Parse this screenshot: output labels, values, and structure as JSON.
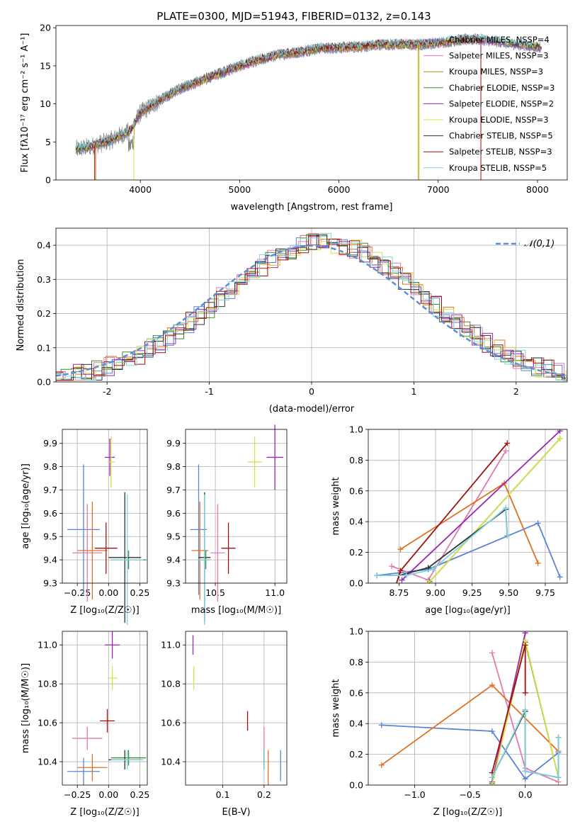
{
  "chart_data": [
    {
      "type": "line",
      "title": "PLATE=0300, MJD=51943, FIBERID=0132, z=0.143",
      "xlabel": "wavelength [Angstrom, rest frame]",
      "ylabel": "Flux [fλ10⁻¹⁷ erg cm⁻² s⁻¹ A⁻¹]",
      "xlim": [
        3150,
        8300
      ],
      "ylim": [
        0,
        20.3
      ],
      "xticks": [
        4000,
        5000,
        6000,
        7000,
        8000
      ],
      "yticks": [
        0,
        5,
        10,
        15,
        20
      ],
      "grid": false,
      "legend": "top-right",
      "legend_entries": [
        {
          "label": "Chabrier MILES, NSSP=4",
          "color": "#5b84d6"
        },
        {
          "label": "Salpeter MILES, NSSP=3",
          "color": "#e07bb0"
        },
        {
          "label": "Kroupa MILES, NSSP=3",
          "color": "#b8860b"
        },
        {
          "label": "Chabrier ELODIE, NSSP=3",
          "color": "#3a8a3a"
        },
        {
          "label": "Salpeter ELODIE, NSSP=2",
          "color": "#9b27b0"
        },
        {
          "label": "Kroupa ELODIE, NSSP=3",
          "color": "#d8e04a"
        },
        {
          "label": "Chabrier STELIB, NSSP=5",
          "color": "#333333"
        },
        {
          "label": "Salpeter STELIB, NSSP=3",
          "color": "#a01010"
        },
        {
          "label": "Kroupa STELIB, NSSP=5",
          "color": "#7fd3e0"
        }
      ],
      "continuum_x": [
        3350,
        3500,
        3700,
        3900,
        4000,
        4200,
        4400,
        4600,
        4800,
        5000,
        5200,
        5400,
        5600,
        5800,
        6000,
        6200,
        6400,
        6600,
        6800,
        7000,
        7200,
        7400,
        7600,
        7800,
        8000
      ],
      "continuum_y": [
        4,
        4.4,
        5.2,
        6.5,
        8.8,
        10.5,
        12,
        13,
        14,
        15,
        15.8,
        16.5,
        16.8,
        17.3,
        17.4,
        17.5,
        17.8,
        17.8,
        17.8,
        18,
        18.4,
        18.5,
        18.2,
        17.8,
        17.5
      ]
    },
    {
      "type": "bar",
      "xlabel": "(data-model)/error",
      "ylabel": "Normed distribution",
      "xlim": [
        -2.5,
        2.5
      ],
      "ylim": [
        0,
        0.45
      ],
      "xticks": [
        -2,
        -1,
        0,
        1,
        2
      ],
      "yticks": [
        0.0,
        0.1,
        0.2,
        0.3,
        0.4
      ],
      "grid": true,
      "legend": "top-right",
      "legend_entries": [
        {
          "label": "𝒩(0,1)",
          "color": "#5b8fd6"
        }
      ],
      "bin_width": 0.1,
      "series_colors": [
        "#5b84d6",
        "#e07bb0",
        "#e07020",
        "#3a8a3a",
        "#9b27b0",
        "#d8e04a",
        "#333333",
        "#a01010",
        "#7fd3e0"
      ]
    },
    {
      "type": "scatter",
      "xlabel": "Z [log₁₀(Z/Z☉)]",
      "ylabel": "age  [log₁₀(age/yr)]",
      "xlim": [
        -0.37,
        0.31
      ],
      "ylim": [
        9.3,
        9.96
      ],
      "xticks": [
        -0.25,
        0,
        0.25
      ],
      "xticklabels": [
        "−0.25",
        "0.00",
        "0.25"
      ],
      "yticks": [
        9.3,
        9.4,
        9.5,
        9.6,
        9.7,
        9.8,
        9.9
      ],
      "grid": true,
      "points": [
        {
          "x": -0.2,
          "y": 9.53,
          "xerr": 0.13,
          "yerr": 0.28,
          "color": "#5b84d6"
        },
        {
          "x": -0.17,
          "y": 9.43,
          "xerr": 0.12,
          "yerr": 0.21,
          "color": "#e07bb0"
        },
        {
          "x": -0.13,
          "y": 9.44,
          "xerr": 0.12,
          "yerr": 0.21,
          "color": "#e07020"
        },
        {
          "x": 0.16,
          "y": 9.4,
          "xerr": 0.14,
          "yerr": 0.04,
          "color": "#3a8a3a"
        },
        {
          "x": 0.01,
          "y": 9.84,
          "xerr": 0.04,
          "yerr": 0.08,
          "color": "#9b27b0"
        },
        {
          "x": 0.02,
          "y": 9.82,
          "xerr": 0.03,
          "yerr": 0.11,
          "color": "#d8e04a"
        },
        {
          "x": 0.13,
          "y": 9.41,
          "xerr": 0.13,
          "yerr": 0.28,
          "color": "#333333"
        },
        {
          "x": -0.02,
          "y": 9.45,
          "xerr": 0.09,
          "yerr": 0.11,
          "color": "#a01010"
        },
        {
          "x": 0.15,
          "y": 9.4,
          "xerr": 0.13,
          "yerr": 0.28,
          "color": "#7fd3e0"
        }
      ]
    },
    {
      "type": "scatter",
      "xlabel": "mass [log₁₀(M/M☉)]",
      "ylabel": "",
      "xlim": [
        10.25,
        11.1
      ],
      "ylim": [
        9.3,
        9.96
      ],
      "xticks": [
        10.5,
        11.0
      ],
      "xticklabels": [
        "10.5",
        "11.0"
      ],
      "yticks": [
        9.3,
        9.4,
        9.5,
        9.6,
        9.7,
        9.8,
        9.9
      ],
      "grid": true,
      "points": [
        {
          "x": 10.36,
          "y": 9.53,
          "xerr": 0.07,
          "yerr": 0.28,
          "color": "#5b84d6"
        },
        {
          "x": 10.52,
          "y": 9.43,
          "xerr": 0.06,
          "yerr": 0.21,
          "color": "#e07bb0"
        },
        {
          "x": 10.37,
          "y": 9.44,
          "xerr": 0.07,
          "yerr": 0.21,
          "color": "#e07020"
        },
        {
          "x": 10.42,
          "y": 9.4,
          "xerr": 0.04,
          "yerr": 0.04,
          "color": "#3a8a3a"
        },
        {
          "x": 11.0,
          "y": 9.84,
          "xerr": 0.07,
          "yerr": 0.14,
          "color": "#9b27b0"
        },
        {
          "x": 10.83,
          "y": 9.82,
          "xerr": 0.06,
          "yerr": 0.11,
          "color": "#d8e04a"
        },
        {
          "x": 10.41,
          "y": 9.41,
          "xerr": 0.05,
          "yerr": 0.28,
          "color": "#333333"
        },
        {
          "x": 10.61,
          "y": 9.45,
          "xerr": 0.06,
          "yerr": 0.11,
          "color": "#a01010"
        },
        {
          "x": 10.41,
          "y": 9.4,
          "xerr": 0.05,
          "yerr": 0.28,
          "color": "#7fd3e0"
        }
      ]
    },
    {
      "type": "line",
      "xlabel": "age  [log₁₀(age/yr)]",
      "ylabel": "mass weight",
      "xlim": [
        8.54,
        9.9
      ],
      "ylim": [
        0,
        1
      ],
      "xticks": [
        8.75,
        9.0,
        9.25,
        9.5,
        9.75
      ],
      "xticklabels": [
        "8.75",
        "9.00",
        "9.25",
        "9.50",
        "9.75"
      ],
      "yticks": [
        0,
        0.2,
        0.4,
        0.6,
        0.8,
        1.0
      ],
      "yticklabels": [
        "0.0",
        "0.2",
        "0.4",
        "0.6",
        "0.8",
        "1.0"
      ],
      "grid": true,
      "series": [
        {
          "color": "#5b84d6",
          "x": [
            8.6,
            8.95,
            9.7,
            9.85
          ],
          "y": [
            0.05,
            0.09,
            0.39,
            0.04
          ]
        },
        {
          "color": "#e07bb0",
          "x": [
            8.7,
            8.95,
            9.48
          ],
          "y": [
            0.11,
            0.02,
            0.86
          ]
        },
        {
          "color": "#e07020",
          "x": [
            8.76,
            9.47,
            9.7
          ],
          "y": [
            0.22,
            0.65,
            0.13
          ]
        },
        {
          "color": "#3a8a3a",
          "x": [
            8.96,
            9.85
          ],
          "y": [
            0.01,
            0.94
          ]
        },
        {
          "color": "#9b27b0",
          "x": [
            8.77,
            9.85
          ],
          "y": [
            0.02,
            0.99
          ]
        },
        {
          "color": "#d8e04a",
          "x": [
            8.95,
            9.85
          ],
          "y": [
            0.0,
            0.94
          ]
        },
        {
          "color": "#333333",
          "x": [
            8.6,
            8.75,
            8.95,
            9.48,
            9.49
          ],
          "y": [
            0.05,
            0.05,
            0.1,
            0.48,
            0.31
          ]
        },
        {
          "color": "#a01010",
          "x": [
            8.7,
            8.76,
            9.49
          ],
          "y": [
            -0.1,
            0.08,
            0.91
          ]
        },
        {
          "color": "#7fd3e0",
          "x": [
            8.6,
            8.8,
            8.98,
            9.48,
            9.49
          ],
          "y": [
            0.05,
            0.05,
            0.09,
            0.49,
            0.31
          ]
        }
      ]
    },
    {
      "type": "scatter",
      "xlabel": "Z [log₁₀(Z/Z☉)]",
      "ylabel": "mass [log₁₀(M/M☉)]",
      "xlim": [
        -0.37,
        0.31
      ],
      "ylim": [
        10.28,
        11.07
      ],
      "xticks": [
        -0.25,
        0,
        0.25
      ],
      "xticklabels": [
        "−0.25",
        "0.00",
        "0.25"
      ],
      "yticks": [
        10.4,
        10.6,
        10.8,
        11.0
      ],
      "grid": true,
      "points": [
        {
          "x": -0.2,
          "y": 10.35,
          "xerr": 0.13,
          "yerr": 0.07,
          "color": "#5b84d6"
        },
        {
          "x": -0.17,
          "y": 10.52,
          "xerr": 0.12,
          "yerr": 0.06,
          "color": "#e07bb0"
        },
        {
          "x": -0.13,
          "y": 10.37,
          "xerr": 0.12,
          "yerr": 0.07,
          "color": "#e07020"
        },
        {
          "x": 0.16,
          "y": 10.42,
          "xerr": 0.14,
          "yerr": 0.04,
          "color": "#3a8a3a"
        },
        {
          "x": 0.03,
          "y": 11.0,
          "xerr": 0.06,
          "yerr": 0.07,
          "color": "#9b27b0"
        },
        {
          "x": 0.03,
          "y": 10.83,
          "xerr": 0.04,
          "yerr": 0.06,
          "color": "#d8e04a"
        },
        {
          "x": 0.13,
          "y": 10.41,
          "xerr": 0.13,
          "yerr": 0.05,
          "color": "#333333"
        },
        {
          "x": -0.01,
          "y": 10.61,
          "xerr": 0.06,
          "yerr": 0.06,
          "color": "#a01010"
        },
        {
          "x": 0.15,
          "y": 10.41,
          "xerr": 0.13,
          "yerr": 0.05,
          "color": "#7fd3e0"
        }
      ]
    },
    {
      "type": "scatter",
      "xlabel": "E(B-V)",
      "ylabel": "",
      "xlim": [
        0.01,
        0.255
      ],
      "ylim": [
        10.28,
        11.07
      ],
      "xticks": [
        0.1,
        0.2
      ],
      "xticklabels": [
        "0.1",
        "0.2"
      ],
      "yticks": [
        10.4,
        10.6,
        10.8,
        11.0
      ],
      "grid": true,
      "points": [
        {
          "x": 0.24,
          "y": 10.38,
          "xerr": 0,
          "yerr": 0.08,
          "color": "#5b84d6"
        },
        {
          "x": 0.2,
          "y": 10.52,
          "xerr": 0,
          "yerr": 0.06,
          "color": "#e07bb0"
        },
        {
          "x": 0.21,
          "y": 10.37,
          "xerr": 0,
          "yerr": 0.09,
          "color": "#e07020"
        },
        {
          "x": 0.2,
          "y": 10.42,
          "xerr": 0,
          "yerr": 0.04,
          "color": "#3a8a3a"
        },
        {
          "x": 0.028,
          "y": 11.0,
          "xerr": 0,
          "yerr": 0.05,
          "color": "#9b27b0"
        },
        {
          "x": 0.03,
          "y": 10.83,
          "xerr": 0,
          "yerr": 0.06,
          "color": "#d8e04a"
        },
        {
          "x": 0.2,
          "y": 10.41,
          "xerr": 0,
          "yerr": 0.05,
          "color": "#333333"
        },
        {
          "x": 0.16,
          "y": 10.61,
          "xerr": 0,
          "yerr": 0.05,
          "color": "#a01010"
        },
        {
          "x": 0.2,
          "y": 10.41,
          "xerr": 0,
          "yerr": 0.05,
          "color": "#7fd3e0"
        }
      ]
    },
    {
      "type": "line",
      "xlabel": "Z [log₁₀(Z/Z☉)]",
      "ylabel": "mass weight",
      "xlim": [
        -1.42,
        0.38
      ],
      "ylim": [
        0,
        1
      ],
      "xticks": [
        -1.0,
        -0.5,
        0.0
      ],
      "xticklabels": [
        "−1.0",
        "−0.5",
        "0.0"
      ],
      "yticks": [
        0,
        0.2,
        0.4,
        0.6,
        0.8,
        1.0
      ],
      "yticklabels": [
        "0.0",
        "0.2",
        "0.4",
        "0.6",
        "0.8",
        "1.0"
      ],
      "grid": true,
      "series": [
        {
          "color": "#5b84d6",
          "x": [
            -1.3,
            -0.3,
            0.0,
            0.3
          ],
          "y": [
            0.39,
            0.35,
            0.04,
            0.21
          ]
        },
        {
          "color": "#e07bb0",
          "x": [
            -0.3,
            0.0,
            0.3
          ],
          "y": [
            0.86,
            0.11,
            0.02
          ]
        },
        {
          "color": "#e07020",
          "x": [
            -1.3,
            -0.3,
            0.3
          ],
          "y": [
            0.13,
            0.65,
            0.22
          ]
        },
        {
          "color": "#3a8a3a",
          "x": [
            -0.3,
            0.0,
            0.3
          ],
          "y": [
            0.01,
            0.93,
            0.05
          ]
        },
        {
          "color": "#9b27b0",
          "x": [
            -0.3,
            0.0
          ],
          "y": [
            0.02,
            0.99
          ]
        },
        {
          "color": "#d8e04a",
          "x": [
            -0.3,
            0.0,
            0.3
          ],
          "y": [
            0.0,
            0.94,
            0.05
          ]
        },
        {
          "color": "#333333",
          "x": [
            -0.3,
            0.0,
            0.0,
            0.3,
            0.3
          ],
          "y": [
            0.05,
            0.48,
            0.09,
            0.05,
            0.31
          ]
        },
        {
          "color": "#a01010",
          "x": [
            -0.3,
            0.0,
            0.0
          ],
          "y": [
            0.08,
            0.91,
            0.6
          ]
        },
        {
          "color": "#7fd3e0",
          "x": [
            -0.3,
            0.0,
            0.0,
            0.3,
            0.3
          ],
          "y": [
            0.05,
            0.49,
            0.09,
            0.05,
            0.31
          ]
        }
      ]
    }
  ]
}
